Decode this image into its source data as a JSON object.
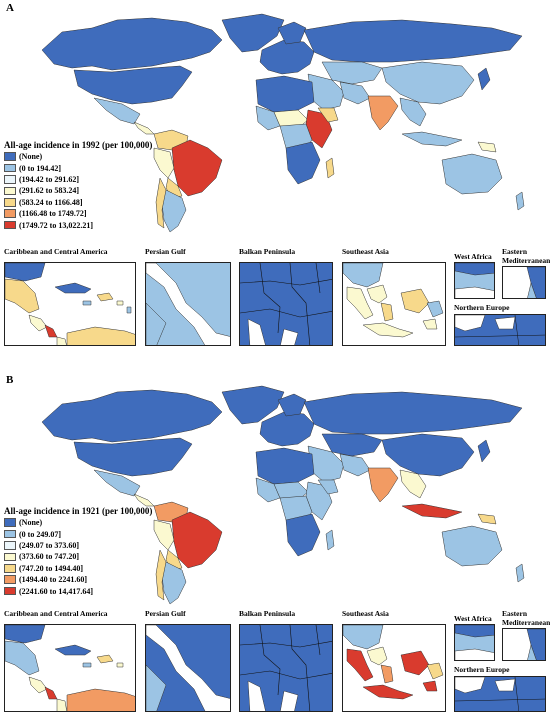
{
  "colors": {
    "none": "#3f6cbc",
    "c1": "#9cc4e4",
    "c2": "#ecf6fb",
    "c3": "#fbf9d0",
    "c4": "#f7d98b",
    "c5": "#f29b63",
    "c6": "#d93b2e",
    "ocean": "#ffffff",
    "border": "#333333"
  },
  "panel_a": {
    "letter": "A",
    "legend_title": "All-age incidence in 1992 (per 100,000)",
    "legend": [
      {
        "label": "(None)",
        "color": "#3f6cbc"
      },
      {
        "label": "(0 to 194.42]",
        "color": "#9cc4e4"
      },
      {
        "label": "(194.42 to 291.62]",
        "color": "#ecf6fb"
      },
      {
        "label": "(291.62 to 583.24]",
        "color": "#fbf9d0"
      },
      {
        "label": "(583.24 to 1166.48]",
        "color": "#f7d98b"
      },
      {
        "label": "(1166.48 to 1749.72]",
        "color": "#f29b63"
      },
      {
        "label": "(1749.72 to 13,022.21]",
        "color": "#d93b2e"
      }
    ],
    "insets": {
      "caribbean": "Caribbean and Central America",
      "persian_gulf": "Persian Gulf",
      "balkan": "Balkan Peninsula",
      "southeast_asia": "Southeast Asia",
      "west_africa": "West Africa",
      "eastern_med_1": "Eastern",
      "eastern_med_2": "Mediterranean",
      "northern_europe": "Northern Europe"
    }
  },
  "panel_b": {
    "letter": "B",
    "legend_title": "All-age incidence in 1921 (per 100,000)",
    "legend": [
      {
        "label": "(None)",
        "color": "#3f6cbc"
      },
      {
        "label": "(0 to 249.07]",
        "color": "#9cc4e4"
      },
      {
        "label": "(249.07 to 373.60]",
        "color": "#ecf6fb"
      },
      {
        "label": "(373.60 to 747.20]",
        "color": "#fbf9d0"
      },
      {
        "label": "(747.20 to 1494.40]",
        "color": "#f7d98b"
      },
      {
        "label": "(1494.40 to 2241.60]",
        "color": "#f29b63"
      },
      {
        "label": "(2241.60 to 14,417.64]",
        "color": "#d93b2e"
      }
    ],
    "insets": {
      "caribbean": "Caribbean and Central America",
      "persian_gulf": "Persian Gulf",
      "balkan": "Balkan Peninsula",
      "southeast_asia": "Southeast Asia",
      "west_africa": "West Africa",
      "eastern_med_1": "Eastern",
      "eastern_med_2": "Mediterranean",
      "northern_europe": "Northern Europe"
    }
  }
}
